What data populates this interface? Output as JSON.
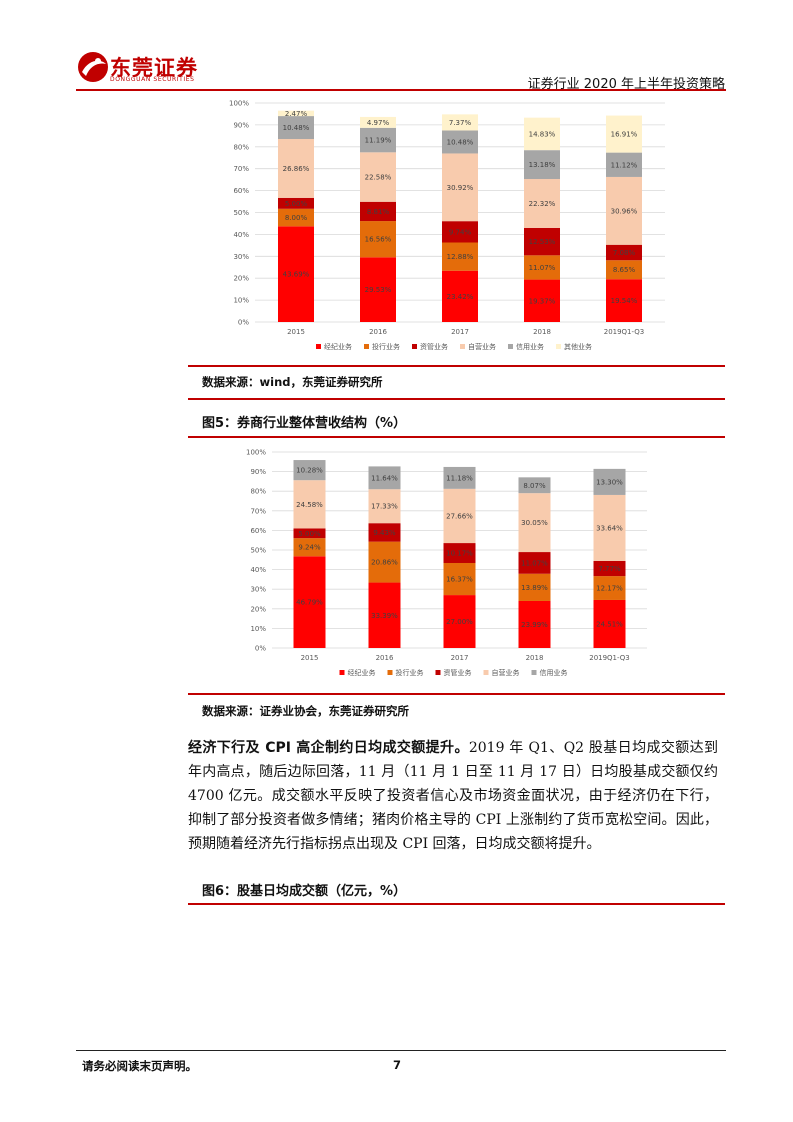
{
  "header": {
    "logo_text": "东莞证券",
    "logo_sub": "DONGGUAN SECURITIES",
    "title": "证券行业 2020 年上半年投资策略"
  },
  "sections": [
    {
      "source": "数据来源：wind，东莞证券研究所"
    },
    {
      "figure_title": "图5：券商行业整体营收结构（%）",
      "source": "数据来源：证券业协会，东莞证券研究所"
    }
  ],
  "paragraph": {
    "bold": "经济下行及 CPI 高企制约日均成交额提升。",
    "text": "2019 年 Q1、Q2 股基日均成交额达到年内高点，随后边际回落，11 月（11 月 1 日至 11 月 17 日）日均股基成交额仅约 4700 亿元。成交额水平反映了投资者信心及市场资金面状况，由于经济仍在下行，抑制了部分投资者做多情绪；猪肉价格主导的 CPI 上涨制约了货币宽松空间。因此，预期随着经济先行指标拐点出现及 CPI 回落，日均成交额将提升。"
  },
  "figure6": {
    "title": "图6：股基日均成交额（亿元，%）"
  },
  "footer": {
    "disclaimer": "请务必阅读末页声明。",
    "page": "7"
  },
  "colors": {
    "brokerage": "#ff0000",
    "ib": "#e46c0a",
    "am": "#c00000",
    "prop": "#f8cbad",
    "credit": "#a6a6a6",
    "other": "#fff2cc",
    "brand": "#c00000"
  },
  "chart_data": [
    {
      "type": "bar",
      "stacked": true,
      "categories": [
        "2015",
        "2016",
        "2017",
        "2018",
        "2019Q1-Q3"
      ],
      "ylim": [
        0,
        100
      ],
      "yticks": [
        "0%",
        "10%",
        "20%",
        "30%",
        "40%",
        "50%",
        "60%",
        "70%",
        "80%",
        "90%",
        "100%"
      ],
      "legend_position": "bottom",
      "series": [
        {
          "name": "经纪业务",
          "color": "#ff0000",
          "values": [
            43.69,
            29.53,
            23.42,
            19.37,
            19.54
          ],
          "labels": [
            "43.69%",
            "29.53%",
            "23.42%",
            "19.37%",
            "19.54%"
          ]
        },
        {
          "name": "投行业务",
          "color": "#e46c0a",
          "values": [
            8.0,
            16.56,
            12.88,
            11.07,
            8.65
          ],
          "labels": [
            "8.00%",
            "16.56%",
            "12.88%",
            "11.07%",
            "8.65%"
          ]
        },
        {
          "name": "资管业务",
          "color": "#c00000",
          "values": [
            5.0,
            8.81,
            9.74,
            12.53,
            7.08
          ],
          "labels": [
            "5.00%",
            "8.81%",
            "9.74%",
            "12.53%",
            "7.08%"
          ]
        },
        {
          "name": "自营业务",
          "color": "#f8cbad",
          "values": [
            26.86,
            22.58,
            30.92,
            22.32,
            30.96
          ],
          "labels": [
            "26.86%",
            "22.58%",
            "30.92%",
            "22.32%",
            "30.96%"
          ]
        },
        {
          "name": "信用业务",
          "color": "#a6a6a6",
          "values": [
            10.48,
            11.19,
            10.48,
            13.18,
            11.12
          ],
          "labels": [
            "10.48%",
            "11.19%",
            "10.48%",
            "13.18%",
            "11.12%"
          ]
        },
        {
          "name": "其他业务",
          "color": "#fff2cc",
          "values": [
            2.47,
            4.97,
            7.37,
            14.83,
            16.91
          ],
          "labels": [
            "2.47%",
            "4.97%",
            "7.37%",
            "14.83%",
            "16.91%"
          ]
        }
      ]
    },
    {
      "type": "bar",
      "stacked": true,
      "title": "券商行业整体营收结构（%）",
      "categories": [
        "2015",
        "2016",
        "2017",
        "2018",
        "2019Q1-Q3"
      ],
      "ylim": [
        0,
        100
      ],
      "yticks": [
        "0%",
        "10%",
        "20%",
        "30%",
        "40%",
        "50%",
        "60%",
        "70%",
        "80%",
        "90%",
        "100%"
      ],
      "legend_position": "bottom",
      "series": [
        {
          "name": "经纪业务",
          "color": "#ff0000",
          "values": [
            46.79,
            33.39,
            27.0,
            23.99,
            24.51
          ],
          "labels": [
            "46.79%",
            "33.39%",
            "27.00%",
            "23.99%",
            "24.51%"
          ]
        },
        {
          "name": "投行业务",
          "color": "#e46c0a",
          "values": [
            9.24,
            20.86,
            16.37,
            13.89,
            12.17
          ],
          "labels": [
            "9.24%",
            "20.86%",
            "16.37%",
            "13.89%",
            "12.17%"
          ]
        },
        {
          "name": "资管业务",
          "color": "#c00000",
          "values": [
            5.0,
            9.43,
            10.17,
            11.07,
            7.77
          ],
          "labels": [
            "5.00%",
            "9.43%",
            "10.17%",
            "11.07%",
            "7.77%"
          ]
        },
        {
          "name": "自营业务",
          "color": "#f8cbad",
          "values": [
            24.58,
            17.33,
            27.66,
            30.05,
            33.64
          ],
          "labels": [
            "24.58%",
            "17.33%",
            "27.66%",
            "30.05%",
            "33.64%"
          ]
        },
        {
          "name": "信用业务",
          "color": "#a6a6a6",
          "values": [
            10.28,
            11.64,
            11.18,
            8.07,
            13.3
          ],
          "labels": [
            "10.28%",
            "11.64%",
            "11.18%",
            "8.07%",
            "13.30%"
          ]
        }
      ]
    }
  ]
}
